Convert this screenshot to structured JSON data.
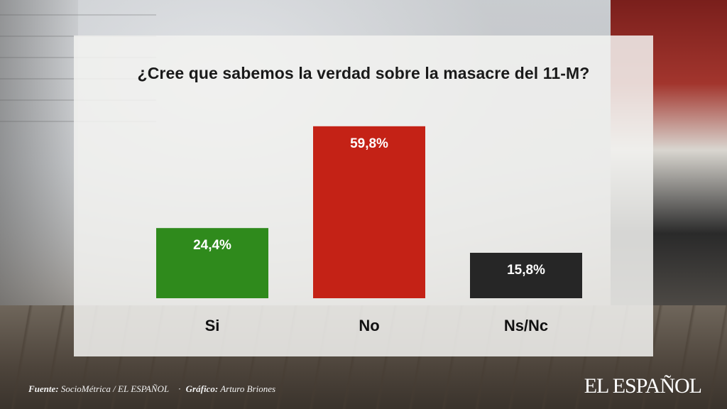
{
  "title": "¿Cree que sabemos la verdad sobre la masacre del 11-M?",
  "chart_data": {
    "type": "bar",
    "categories": [
      "Si",
      "No",
      "Ns/Nc"
    ],
    "values": [
      24.4,
      59.8,
      15.8
    ],
    "value_labels": [
      "24,4%",
      "59,8%",
      "15,8%"
    ],
    "colors": [
      "#2f8a1c",
      "#c42216",
      "#262626"
    ],
    "title": "¿Cree que sabemos la verdad sobre la masacre del 11-M?",
    "xlabel": "",
    "ylabel": "",
    "ylim": [
      0,
      60
    ],
    "grid": false,
    "legend": "none"
  },
  "footer": {
    "source_label": "Fuente:",
    "source_value": "SocioMétrica / EL ESPAÑOL",
    "separator": "·",
    "graphic_label": "Gráfico:",
    "graphic_value": "Arturo Briones"
  },
  "brand": "EL ESPAÑOL"
}
